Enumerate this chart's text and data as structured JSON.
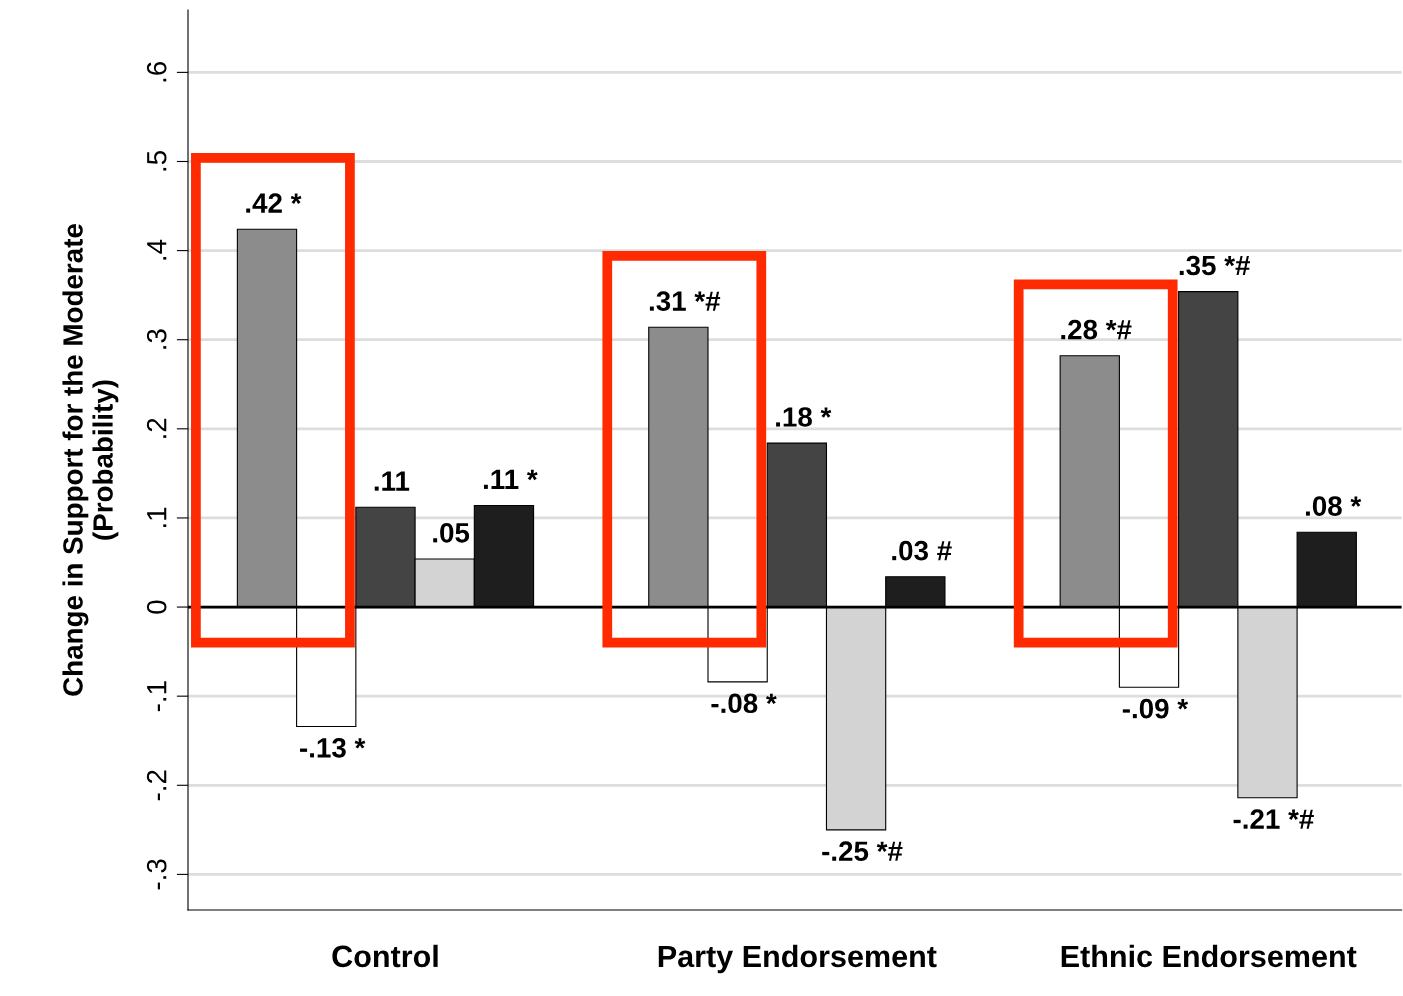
{
  "chart_data": {
    "type": "bar",
    "ylabel": "Change in Support for the Moderate\n(Probability)",
    "categories": [
      "Control",
      "Party Endorsement",
      "Ethnic Endorsement"
    ],
    "series": [
      {
        "color": "#8c8c8c",
        "values": [
          0.424,
          0.314,
          0.282
        ],
        "value_labels": [
          ".42 *",
          ".31 *#",
          ".28 *#"
        ]
      },
      {
        "color": "#ffffff",
        "values": [
          -0.134,
          -0.084,
          -0.09
        ],
        "value_labels": [
          "-.13 *",
          "-.08 *",
          "-.09 *"
        ]
      },
      {
        "color": "#444444",
        "values": [
          0.112,
          0.184,
          0.354
        ],
        "value_labels": [
          ".11",
          ".18 *",
          ".35 *#"
        ]
      },
      {
        "color": "#d3d3d3",
        "values": [
          0.054,
          -0.25,
          -0.214
        ],
        "value_labels": [
          ".05",
          "-.25 *#",
          "-.21 *#"
        ]
      },
      {
        "color": "#1e1e1e",
        "values": [
          0.114,
          0.034,
          0.084
        ],
        "value_labels": [
          ".11 *",
          ".03 #",
          ".08 *"
        ]
      }
    ],
    "ylim": [
      -0.34,
      0.67
    ],
    "yticks": [
      {
        "value": -0.3,
        "label": "-.3"
      },
      {
        "value": -0.2,
        "label": "-.2"
      },
      {
        "value": -0.1,
        "label": "-.1"
      },
      {
        "value": 0,
        "label": "0"
      },
      {
        "value": 0.1,
        "label": ".1"
      },
      {
        "value": 0.2,
        "label": ".2"
      },
      {
        "value": 0.3,
        "label": ".3"
      },
      {
        "value": 0.4,
        "label": ".4"
      },
      {
        "value": 0.5,
        "label": ".5"
      },
      {
        "value": 0.6,
        "label": ".6"
      }
    ],
    "grid": "y",
    "ref_lines": [
      {
        "axis": "y",
        "value": 0,
        "color": "#000000"
      }
    ]
  }
}
